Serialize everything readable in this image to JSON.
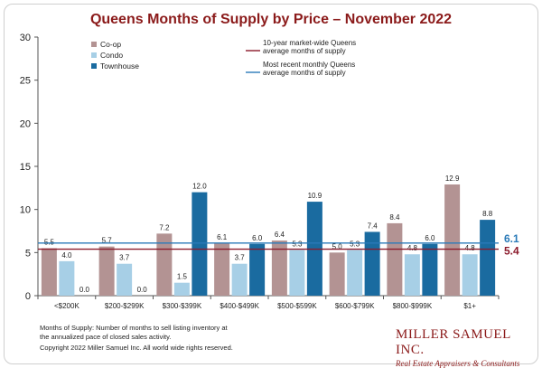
{
  "chart_data": {
    "type": "bar",
    "title": "Queens Months of Supply by Price – November 2022",
    "categories": [
      "<$200K",
      "$200-$299K",
      "$300-$399K",
      "$400-$499K",
      "$500-$599K",
      "$600-$799K",
      "$800-$999K",
      "$1+"
    ],
    "series": [
      {
        "name": "Co-op",
        "color": "#b39393",
        "values": [
          5.5,
          5.7,
          7.2,
          6.1,
          6.4,
          5.0,
          8.4,
          12.9
        ]
      },
      {
        "name": "Condo",
        "color": "#a7cfe6",
        "values": [
          4.0,
          3.7,
          1.5,
          3.7,
          5.3,
          5.3,
          4.8,
          4.8
        ]
      },
      {
        "name": "Townhouse",
        "color": "#1a6ba0",
        "values": [
          0.0,
          0.0,
          12.0,
          6.0,
          10.9,
          7.4,
          6.0,
          8.8
        ]
      }
    ],
    "ylim": [
      0,
      30
    ],
    "yticks": [
      0,
      5,
      10,
      15,
      20,
      25,
      30
    ],
    "reference_lines": [
      {
        "name": "10-year market-wide Queens average months of supply",
        "value": 5.4,
        "label": "5.4",
        "color": "#8b1a2b"
      },
      {
        "name": "Most recent monthly Queens average months of supply",
        "value": 6.1,
        "label": "6.1",
        "color": "#2a7ab8"
      }
    ],
    "legend_left": "top-left",
    "legend_right": "top-right",
    "xlabel": "",
    "ylabel": ""
  },
  "legend_texts": {
    "ref1_line1": "10-year market-wide Queens",
    "ref1_line2": "average months of supply",
    "ref2_line1": "Most recent monthly Queens",
    "ref2_line2": "average months of supply"
  },
  "footnote": {
    "line1": "Months of Supply: Number of months to sell listing inventory at",
    "line2": "the annualized pace of closed sales activity.",
    "line3": "Copyright 2022 Miller Samuel Inc.  All world wide rights reserved."
  },
  "brand": {
    "name": "MILLER SAMUEL INC.",
    "tagline": "Real Estate Appraisers & Consultants"
  }
}
